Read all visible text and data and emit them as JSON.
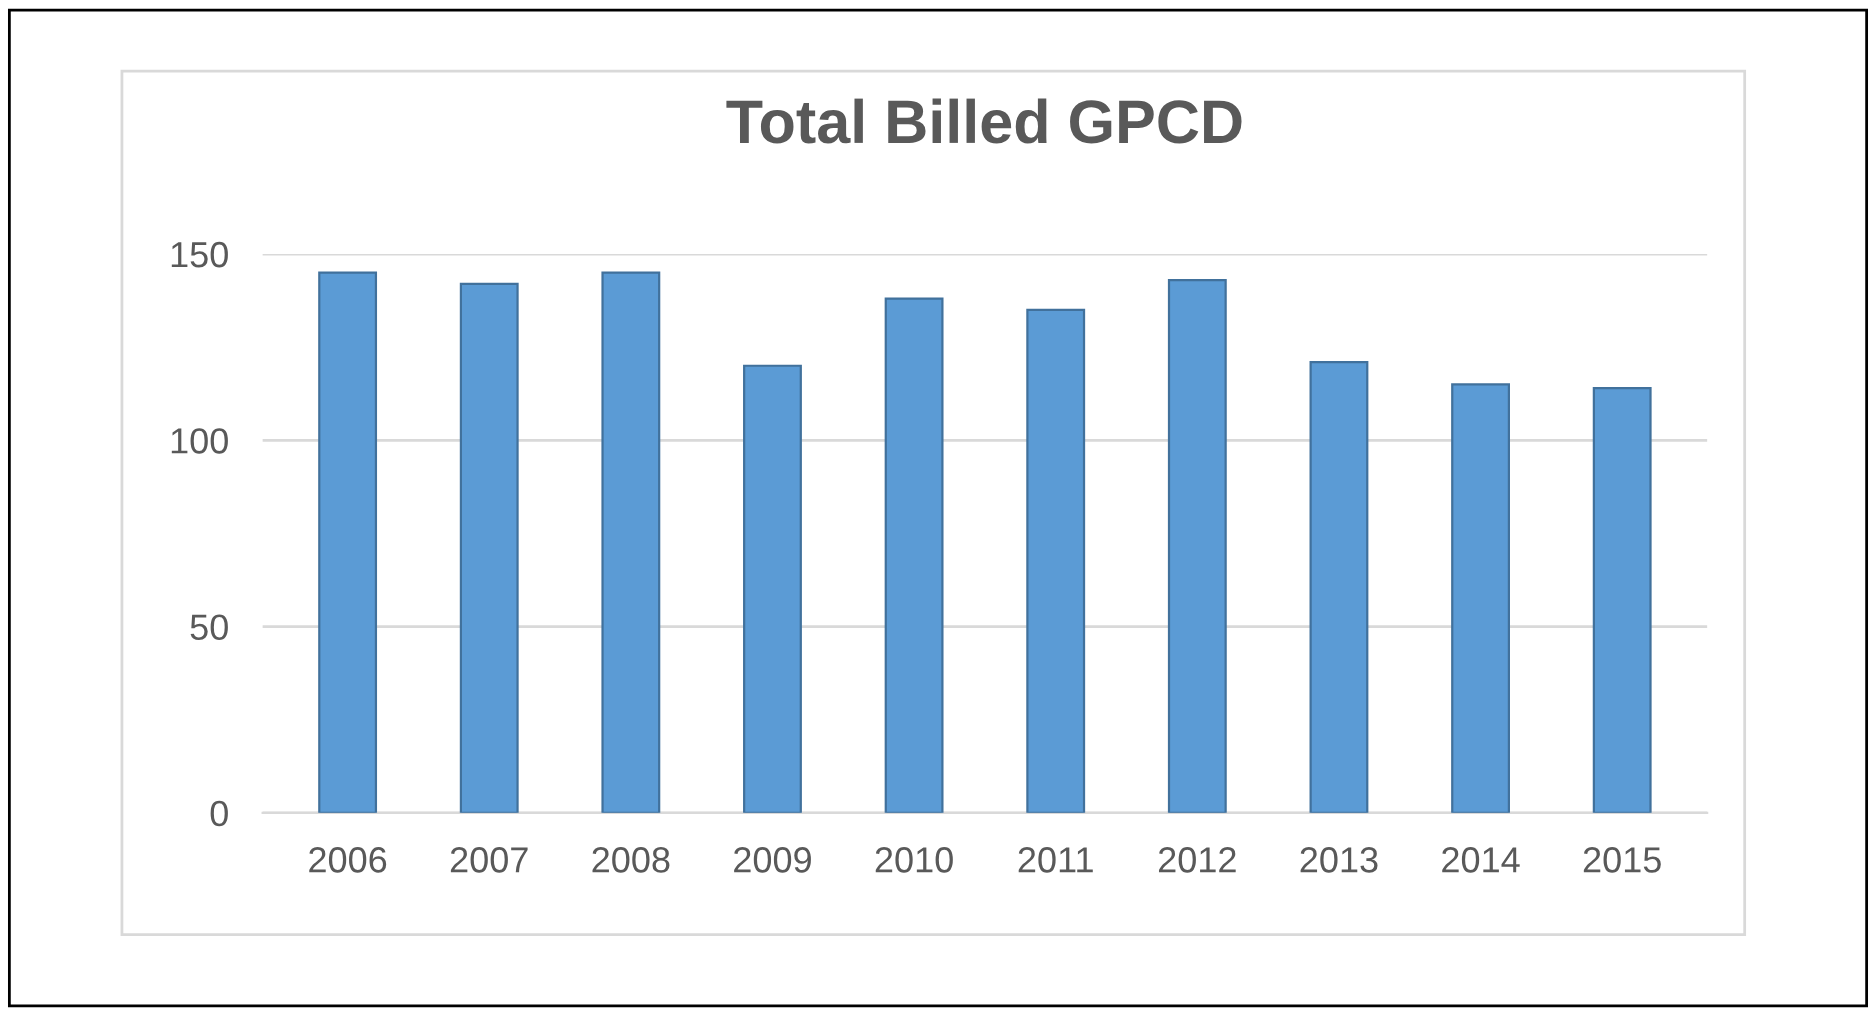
{
  "chart_data": {
    "type": "bar",
    "title": "Total Billed GPCD",
    "categories": [
      "2006",
      "2007",
      "2008",
      "2009",
      "2010",
      "2011",
      "2012",
      "2013",
      "2014",
      "2015"
    ],
    "values": [
      145,
      142,
      145,
      120,
      138,
      135,
      143,
      121,
      115,
      114
    ],
    "color": "#5b9bd5",
    "ylim": [
      0,
      150
    ],
    "yticks": [
      0,
      50,
      100,
      150
    ],
    "grid": "y"
  }
}
